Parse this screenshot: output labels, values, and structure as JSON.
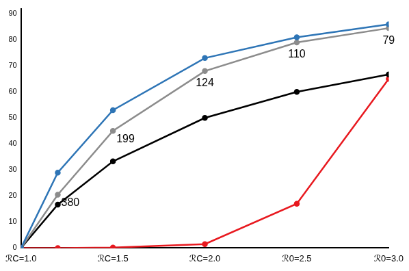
{
  "chart_data": {
    "type": "line",
    "x": [
      1.0,
      1.2,
      1.5,
      2.0,
      2.5,
      3.0
    ],
    "xlim": [
      1,
      3
    ],
    "xticks": [
      {
        "value": 1,
        "label": "ℛC=1.0"
      },
      {
        "value": 1.5,
        "label": "ℛC=1.5"
      },
      {
        "value": 2,
        "label": "ℛC=2.0"
      },
      {
        "value": 2.5,
        "label": "ℛ0=2.5"
      },
      {
        "value": 3,
        "label": "ℛ0=3.0"
      }
    ],
    "ylim": [
      0,
      92
    ],
    "yticks": [
      0,
      10,
      20,
      30,
      40,
      50,
      60,
      70,
      80,
      90
    ],
    "grid": false,
    "marker": "circle",
    "line_style": "solid",
    "series": [
      {
        "color": "#2e75b6",
        "values": [
          0,
          29,
          53,
          73,
          81,
          86
        ]
      },
      {
        "color": "#8c8c8c",
        "values": [
          0,
          20.5,
          45,
          68,
          79,
          84.5
        ],
        "annotations": [
          {
            "x": 1.2,
            "text": "380"
          },
          {
            "x": 1.5,
            "text": "199"
          },
          {
            "x": 2.0,
            "text": "124"
          },
          {
            "x": 2.5,
            "text": "110"
          },
          {
            "x": 3.0,
            "text": "79"
          }
        ]
      },
      {
        "color": "#000000",
        "values": [
          0,
          16.7,
          33.3,
          50,
          60,
          66.7
        ]
      },
      {
        "color": "#e8191f",
        "values": [
          0,
          0,
          0.2,
          1.5,
          17,
          65
        ]
      }
    ]
  }
}
